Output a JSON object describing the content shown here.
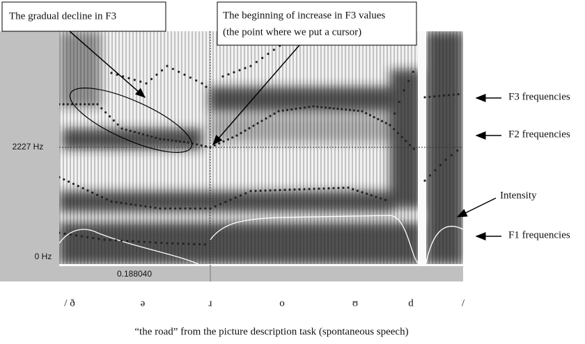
{
  "callouts": [
    {
      "lines": [
        "The gradual decline in F3"
      ]
    },
    {
      "lines": [
        "The beginning of increase in F3 values",
        "(the point where we put a cursor)"
      ]
    }
  ],
  "labels": {
    "f3": "F3 frequencies",
    "f2": "F2 frequencies",
    "intensity": "Intensity",
    "f1": "F1 frequencies"
  },
  "axis": {
    "top_freq": "2227 Hz",
    "bottom_freq": "0 Hz",
    "cursor_time": "0.188040"
  },
  "transcription": [
    "/ ð",
    "ə",
    "ɹ",
    "o",
    "ʊ",
    "d",
    "/"
  ],
  "caption": "“the road” from the picture description task (spontaneous speech)"
}
